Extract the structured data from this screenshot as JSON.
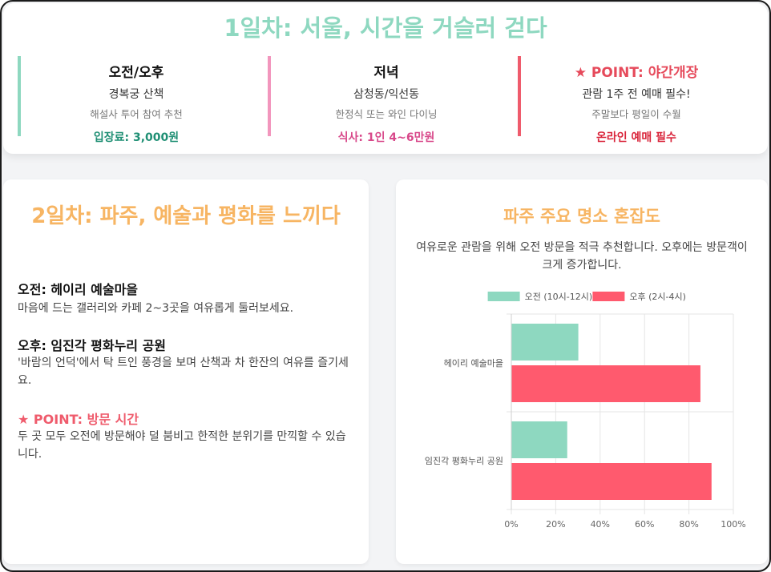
{
  "day1": {
    "title": "1일차: 서울, 시간을 거슬러 걷다",
    "columns": [
      {
        "heading": "오전/오후",
        "main": "경복궁 산책",
        "sub": "해설사 투어 참여 추천",
        "price": "입장료: 3,000원"
      },
      {
        "heading": "저녁",
        "main": "삼청동/익선동",
        "sub": "한정식 또는 와인 다이닝",
        "price": "식사: 1인 4~6만원"
      },
      {
        "heading": "★ POINT: 야간개장",
        "main": "관람 1주 전 예매 필수!",
        "sub": "주말보다 평일이 수월",
        "price": "온라인 예매 필수"
      }
    ],
    "colors": {
      "title": "#8ed8c0",
      "col1": "#8ed8c0",
      "col2": "#f296bd",
      "col3": "#ef5b6c"
    }
  },
  "day2": {
    "title": "2일차: 파주, 예술과 평화를 느끼다",
    "morning": {
      "heading": "오전: 헤이리 예술마을",
      "text": "마음에 드는 갤러리와 카페 2~3곳을 여유롭게 둘러보세요."
    },
    "afternoon": {
      "heading": "오후: 임진각 평화누리 공원",
      "text": "'바람의 언덕'에서 탁 트인 풍경을 보며 산책과 차 한잔의 여유를 즐기세요."
    },
    "point": {
      "heading": "★ POINT: 방문 시간",
      "text": "두 곳 모두 오전에 방문해야 덜 붐비고 한적한 분위기를 만끽할 수 있습니다."
    }
  },
  "chart_panel": {
    "title": "파주 주요 명소 혼잡도",
    "subtitle": "여유로운 관람을 위해 오전 방문을 적극 추천합니다. 오후에는 방문객이 크게 증가합니다."
  },
  "chart_data": {
    "type": "bar",
    "orientation": "horizontal",
    "categories": [
      "헤이리 예술마을",
      "임진각 평화누리 공원"
    ],
    "series": [
      {
        "name": "오전 (10시-12시)",
        "values": [
          30,
          25
        ],
        "color": "#8ed8c0"
      },
      {
        "name": "오후 (2시-4시)",
        "values": [
          85,
          90
        ],
        "color": "#ff5a6e"
      }
    ],
    "xlim": [
      0,
      100
    ],
    "xticks": [
      "0%",
      "20%",
      "40%",
      "60%",
      "80%",
      "100%"
    ],
    "grid": true,
    "legend": "top"
  }
}
